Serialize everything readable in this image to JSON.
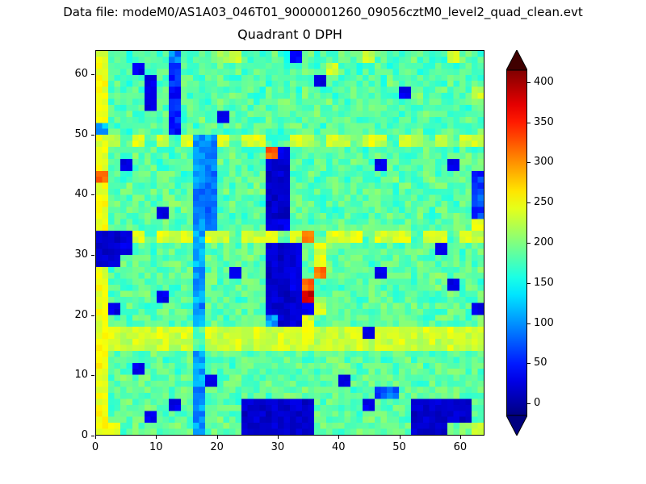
{
  "figure": {
    "datafile_label": "Data file: modeM0/AS1A03_046T01_9000001260_09056cztM0_level2_quad_clean.evt",
    "title": "Quadrant 0 DPH"
  },
  "chart_data": {
    "type": "heatmap",
    "title": "Quadrant 0 DPH",
    "xlabel": "",
    "ylabel": "",
    "x_range": [
      0,
      64
    ],
    "y_range": [
      0,
      64
    ],
    "x_ticks": [
      0,
      10,
      20,
      30,
      40,
      50,
      60
    ],
    "y_ticks": [
      0,
      10,
      20,
      30,
      40,
      50,
      60
    ],
    "colormap": "jet",
    "vmin": -15,
    "vmax": 415,
    "colorbar": {
      "ticks": [
        400,
        350,
        300,
        250,
        200,
        150,
        100,
        50,
        0
      ],
      "extend": "both",
      "position": "right"
    },
    "grid_note": "Estimated 32x32 downsample of the 64x64 detector-plane histogram; rows ordered top (y=63) to bottom (y=0), columns left (x=0) to right (x=63).",
    "noise_amplitude": 22,
    "seed": 12345,
    "grid": [
      [
        245,
        180,
        170,
        185,
        175,
        180,
        90,
        170,
        175,
        180,
        200,
        230,
        180,
        175,
        190,
        170,
        40,
        185,
        180,
        175,
        185,
        190,
        230,
        180,
        175,
        170,
        185,
        180,
        175,
        230,
        185,
        175
      ],
      [
        245,
        175,
        185,
        30,
        175,
        180,
        60,
        175,
        185,
        175,
        190,
        185,
        175,
        180,
        185,
        175,
        180,
        190,
        175,
        230,
        185,
        175,
        180,
        190,
        175,
        185,
        170,
        180,
        190,
        175,
        185,
        180
      ],
      [
        250,
        180,
        175,
        185,
        30,
        175,
        50,
        185,
        175,
        180,
        185,
        175,
        190,
        180,
        175,
        185,
        190,
        175,
        30,
        180,
        175,
        185,
        180,
        175,
        190,
        180,
        185,
        175,
        180,
        185,
        175,
        180
      ],
      [
        245,
        175,
        185,
        180,
        30,
        185,
        40,
        175,
        180,
        190,
        175,
        185,
        180,
        175,
        185,
        180,
        175,
        190,
        180,
        175,
        185,
        180,
        180,
        185,
        175,
        30,
        190,
        175,
        185,
        180,
        175,
        230
      ],
      [
        250,
        180,
        175,
        190,
        30,
        180,
        50,
        185,
        175,
        180,
        190,
        175,
        185,
        180,
        175,
        190,
        180,
        175,
        185,
        190,
        175,
        180,
        185,
        190,
        175,
        185,
        180,
        175,
        190,
        180,
        175,
        185
      ],
      [
        245,
        175,
        190,
        180,
        175,
        185,
        60,
        180,
        190,
        175,
        30,
        190,
        180,
        175,
        190,
        185,
        175,
        180,
        190,
        185,
        180,
        175,
        175,
        190,
        180,
        175,
        185,
        190,
        175,
        180,
        190,
        175
      ],
      [
        110,
        180,
        175,
        185,
        190,
        175,
        40,
        185,
        175,
        190,
        180,
        185,
        175,
        190,
        180,
        175,
        185,
        180,
        175,
        190,
        185,
        175,
        190,
        180,
        185,
        175,
        190,
        180,
        175,
        185,
        180,
        190
      ],
      [
        245,
        230,
        180,
        240,
        185,
        230,
        175,
        240,
        110,
        100,
        240,
        185,
        230,
        240,
        175,
        185,
        240,
        230,
        185,
        240,
        230,
        185,
        240,
        230,
        185,
        240,
        230,
        185,
        240,
        185,
        230,
        240
      ],
      [
        245,
        185,
        175,
        190,
        180,
        185,
        175,
        180,
        110,
        90,
        185,
        190,
        175,
        180,
        320,
        30,
        185,
        175,
        190,
        180,
        185,
        190,
        175,
        185,
        190,
        175,
        180,
        190,
        185,
        175,
        190,
        180
      ],
      [
        250,
        180,
        30,
        185,
        190,
        175,
        185,
        180,
        100,
        90,
        190,
        185,
        180,
        175,
        20,
        15,
        190,
        180,
        185,
        175,
        190,
        185,
        180,
        30,
        185,
        190,
        175,
        185,
        180,
        30,
        185,
        190
      ],
      [
        315,
        185,
        175,
        190,
        180,
        185,
        190,
        175,
        100,
        85,
        185,
        180,
        190,
        185,
        15,
        20,
        180,
        190,
        175,
        185,
        180,
        190,
        185,
        175,
        190,
        180,
        185,
        190,
        175,
        185,
        190,
        60
      ],
      [
        245,
        180,
        190,
        175,
        185,
        190,
        180,
        185,
        95,
        80,
        190,
        175,
        185,
        190,
        20,
        15,
        185,
        180,
        190,
        185,
        175,
        180,
        190,
        185,
        175,
        190,
        180,
        175,
        185,
        190,
        180,
        60
      ],
      [
        250,
        185,
        180,
        190,
        175,
        185,
        190,
        180,
        90,
        85,
        180,
        190,
        185,
        175,
        15,
        20,
        190,
        185,
        175,
        180,
        190,
        175,
        185,
        190,
        180,
        185,
        175,
        190,
        180,
        175,
        190,
        70
      ],
      [
        245,
        180,
        185,
        175,
        190,
        30,
        185,
        190,
        100,
        90,
        185,
        180,
        175,
        190,
        20,
        15,
        185,
        190,
        180,
        175,
        185,
        190,
        175,
        185,
        190,
        180,
        190,
        175,
        185,
        190,
        180,
        60
      ],
      [
        250,
        185,
        190,
        180,
        185,
        190,
        175,
        185,
        105,
        95,
        190,
        185,
        180,
        190,
        25,
        30,
        185,
        175,
        190,
        185,
        190,
        180,
        185,
        190,
        175,
        185,
        190,
        180,
        175,
        185,
        190,
        240
      ],
      [
        20,
        15,
        25,
        240,
        185,
        240,
        230,
        240,
        110,
        240,
        230,
        185,
        240,
        230,
        240,
        185,
        230,
        315,
        185,
        240,
        230,
        240,
        185,
        240,
        230,
        240,
        185,
        230,
        240,
        185,
        240,
        230
      ],
      [
        15,
        20,
        30,
        185,
        175,
        190,
        185,
        180,
        120,
        185,
        190,
        180,
        185,
        190,
        25,
        20,
        30,
        185,
        240,
        190,
        185,
        180,
        190,
        185,
        190,
        180,
        185,
        190,
        30,
        185,
        180,
        190
      ],
      [
        20,
        25,
        185,
        190,
        180,
        185,
        190,
        175,
        110,
        190,
        185,
        180,
        190,
        185,
        20,
        15,
        25,
        190,
        250,
        185,
        190,
        185,
        180,
        190,
        185,
        180,
        190,
        185,
        180,
        190,
        185,
        180
      ],
      [
        245,
        180,
        190,
        185,
        190,
        180,
        185,
        190,
        100,
        185,
        190,
        30,
        185,
        190,
        15,
        20,
        25,
        185,
        315,
        190,
        185,
        180,
        190,
        30,
        185,
        190,
        180,
        185,
        190,
        180,
        185,
        190
      ],
      [
        250,
        185,
        180,
        190,
        185,
        190,
        180,
        185,
        105,
        190,
        180,
        185,
        190,
        180,
        20,
        15,
        30,
        320,
        185,
        190,
        180,
        185,
        190,
        180,
        185,
        190,
        180,
        185,
        190,
        30,
        185,
        180
      ],
      [
        245,
        180,
        190,
        185,
        190,
        30,
        185,
        190,
        110,
        185,
        190,
        180,
        185,
        190,
        25,
        15,
        20,
        380,
        190,
        185,
        190,
        180,
        185,
        190,
        180,
        185,
        190,
        180,
        185,
        190,
        180,
        185
      ],
      [
        250,
        30,
        185,
        190,
        180,
        185,
        190,
        180,
        100,
        190,
        185,
        190,
        180,
        185,
        20,
        15,
        25,
        30,
        240,
        185,
        190,
        185,
        180,
        190,
        185,
        180,
        190,
        185,
        180,
        190,
        185,
        30
      ],
      [
        245,
        185,
        180,
        190,
        185,
        190,
        180,
        185,
        105,
        190,
        180,
        185,
        190,
        185,
        110,
        20,
        25,
        240,
        185,
        190,
        180,
        185,
        190,
        185,
        180,
        190,
        185,
        180,
        190,
        185,
        180,
        190
      ],
      [
        245,
        240,
        230,
        240,
        230,
        240,
        230,
        240,
        185,
        240,
        230,
        240,
        230,
        240,
        230,
        240,
        230,
        240,
        230,
        240,
        230,
        240,
        30,
        240,
        230,
        240,
        230,
        240,
        230,
        240,
        230,
        240
      ],
      [
        250,
        235,
        225,
        235,
        225,
        235,
        225,
        235,
        180,
        235,
        225,
        235,
        225,
        235,
        225,
        235,
        225,
        235,
        225,
        235,
        225,
        235,
        225,
        235,
        225,
        235,
        225,
        235,
        225,
        235,
        225,
        235
      ],
      [
        245,
        180,
        190,
        185,
        190,
        180,
        185,
        190,
        110,
        185,
        190,
        180,
        185,
        190,
        180,
        185,
        190,
        180,
        185,
        190,
        180,
        185,
        190,
        180,
        185,
        190,
        180,
        185,
        190,
        180,
        185,
        190
      ],
      [
        250,
        185,
        180,
        30,
        185,
        190,
        180,
        185,
        105,
        190,
        185,
        180,
        190,
        185,
        180,
        190,
        185,
        190,
        180,
        185,
        190,
        180,
        185,
        190,
        180,
        185,
        190,
        180,
        185,
        190,
        180,
        185
      ],
      [
        245,
        180,
        190,
        185,
        190,
        180,
        190,
        185,
        110,
        30,
        185,
        190,
        180,
        185,
        190,
        180,
        185,
        190,
        180,
        185,
        30,
        185,
        190,
        180,
        185,
        190,
        180,
        185,
        190,
        180,
        185,
        190
      ],
      [
        250,
        185,
        180,
        190,
        185,
        190,
        180,
        185,
        100,
        190,
        185,
        180,
        190,
        185,
        180,
        190,
        185,
        190,
        180,
        185,
        190,
        180,
        190,
        60,
        80,
        185,
        190,
        180,
        185,
        190,
        180,
        185
      ],
      [
        245,
        180,
        190,
        185,
        190,
        180,
        30,
        185,
        110,
        190,
        185,
        180,
        20,
        15,
        20,
        15,
        20,
        15,
        185,
        190,
        180,
        185,
        30,
        190,
        185,
        180,
        20,
        15,
        20,
        15,
        20,
        185
      ],
      [
        250,
        185,
        180,
        190,
        30,
        185,
        190,
        180,
        105,
        185,
        190,
        185,
        15,
        20,
        15,
        20,
        15,
        20,
        185,
        190,
        185,
        180,
        190,
        185,
        190,
        180,
        15,
        20,
        15,
        20,
        15,
        190
      ],
      [
        250,
        240,
        185,
        190,
        185,
        180,
        190,
        185,
        110,
        185,
        190,
        180,
        20,
        15,
        20,
        15,
        20,
        15,
        190,
        185,
        180,
        190,
        185,
        180,
        190,
        185,
        20,
        15,
        20,
        185,
        190,
        240
      ]
    ]
  }
}
